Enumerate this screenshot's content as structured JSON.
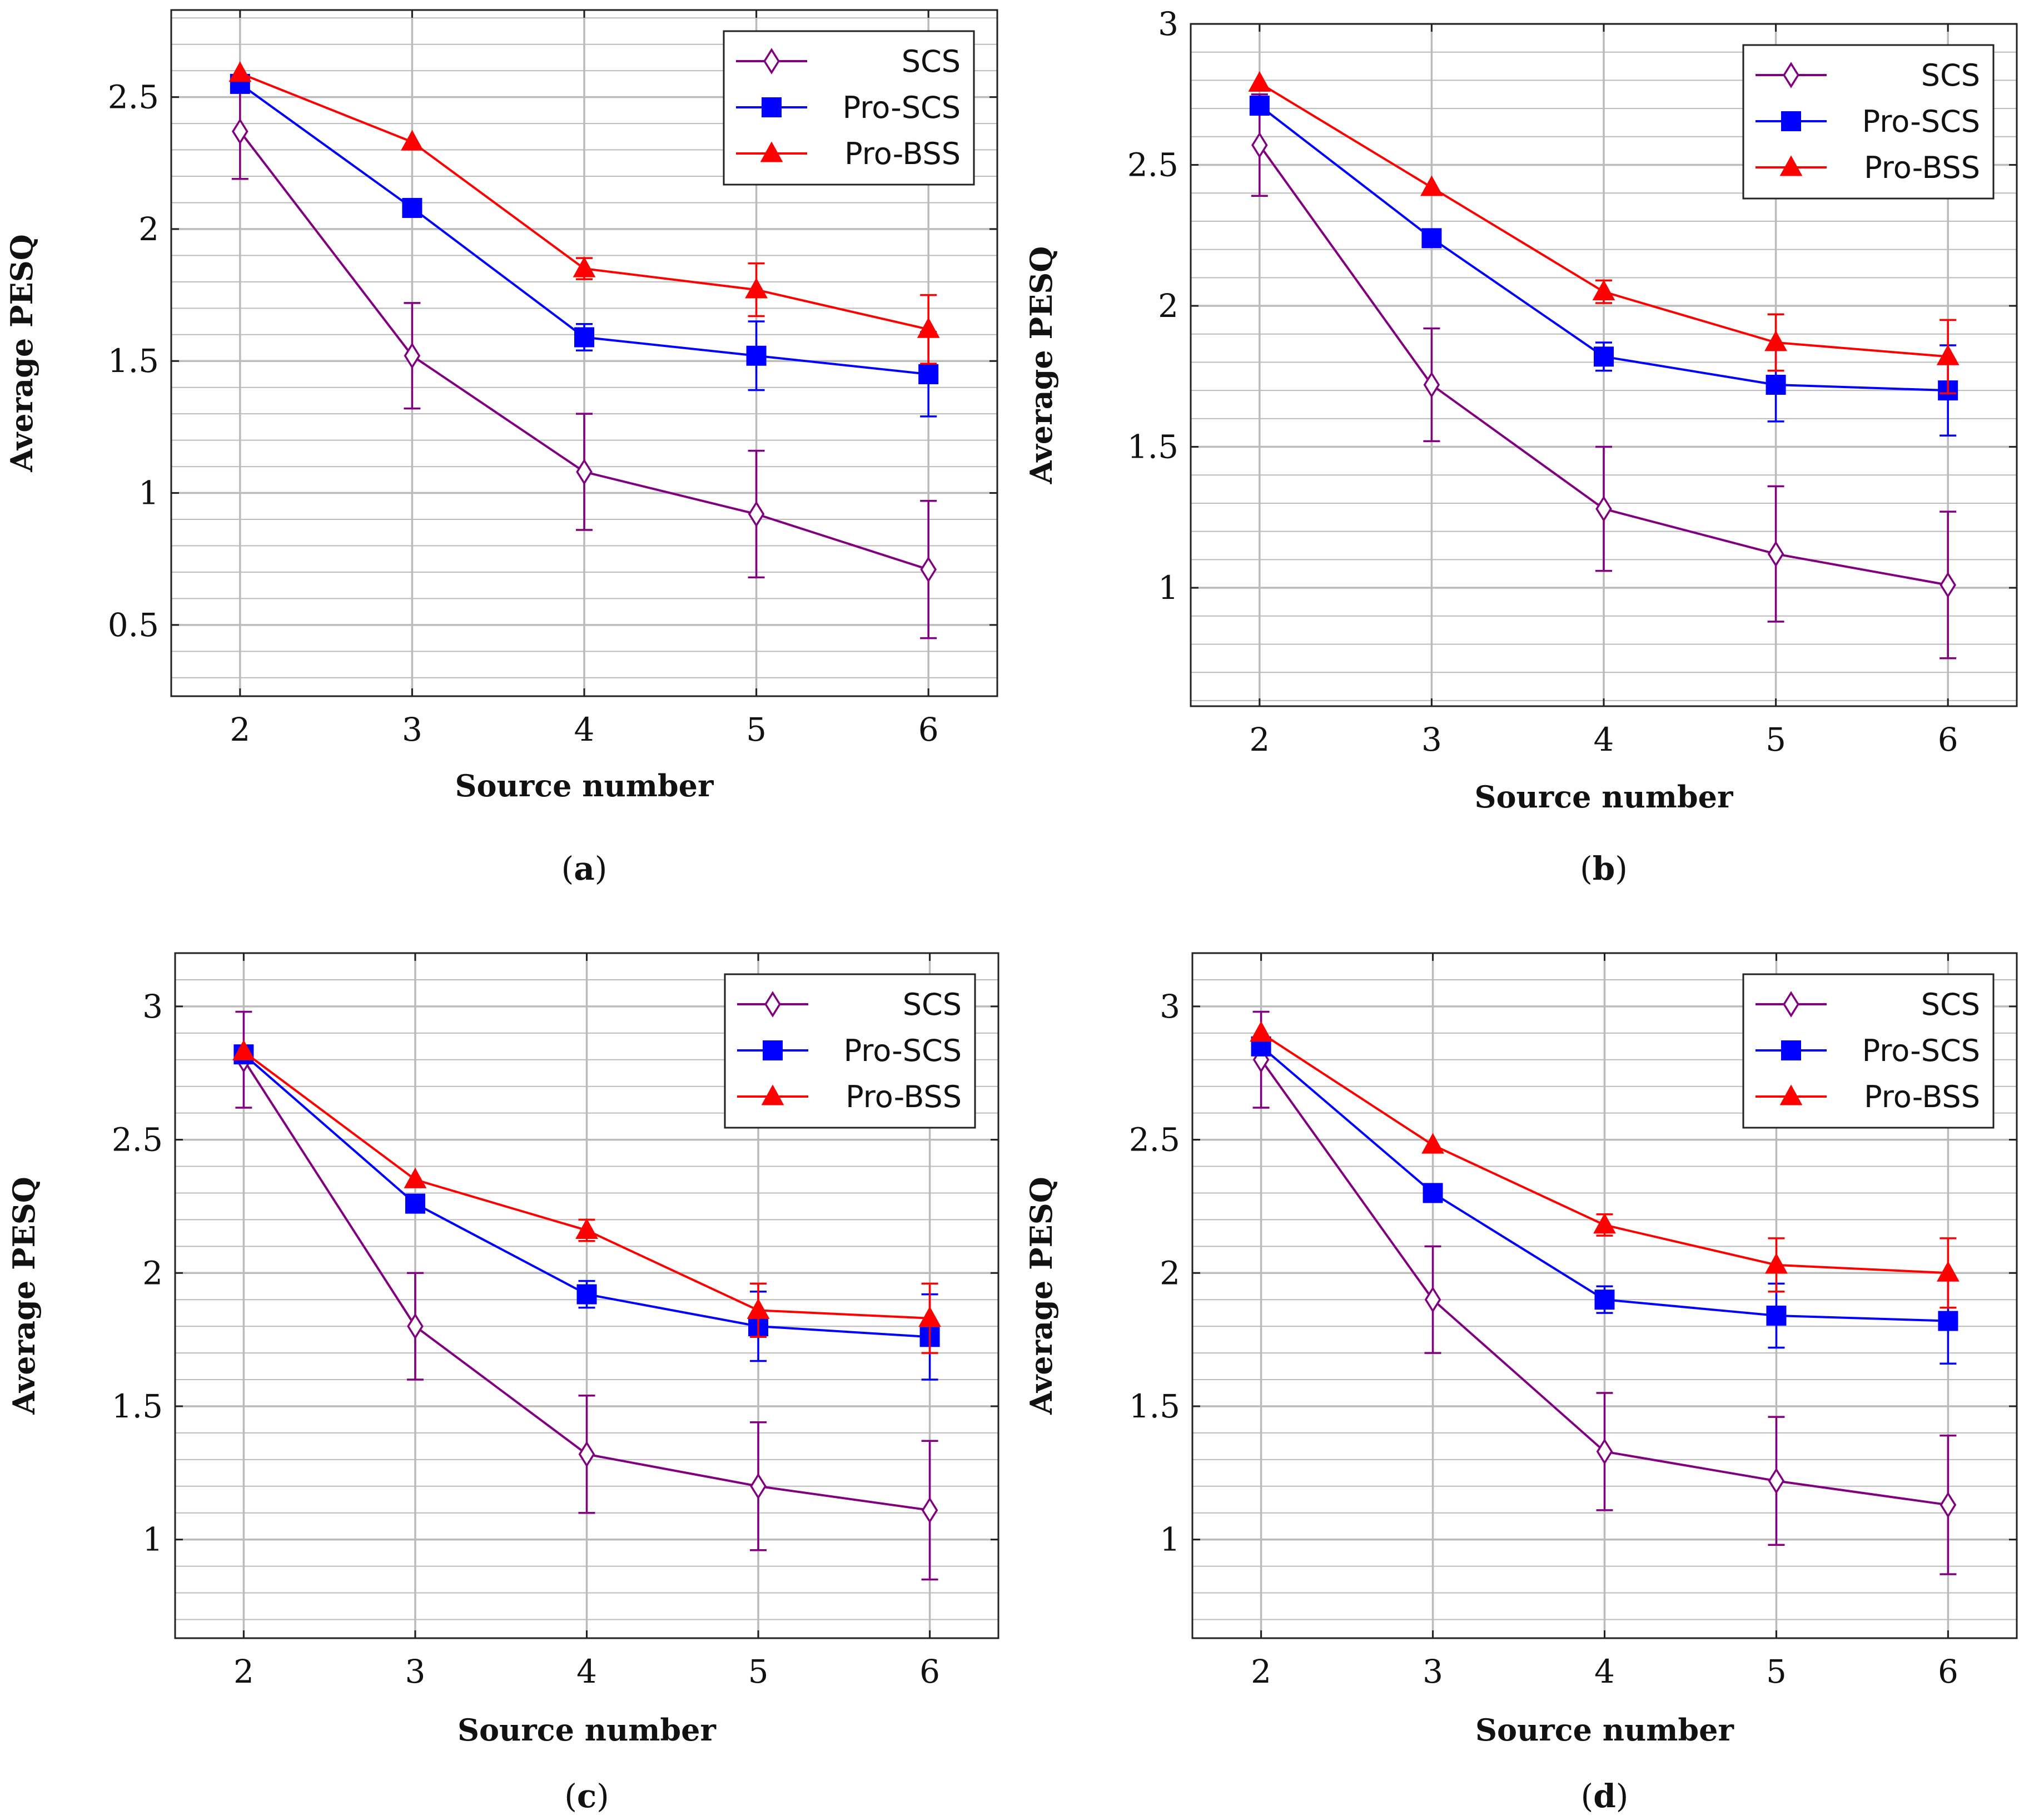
{
  "colors": {
    "SCS": "#800080",
    "Pro-SCS": "#0000ff",
    "Pro-BSS": "#ff0000",
    "grid": "#bbbbbb",
    "frame": "#222222"
  },
  "chart_data": [
    {
      "type": "line",
      "panel_label": "a",
      "xlabel": "Source number",
      "ylabel": "Average PESQ",
      "x": [
        2,
        3,
        4,
        5,
        6
      ],
      "xlim": [
        1.6,
        6.4
      ],
      "ylim": [
        0.23,
        2.83
      ],
      "yticks": [
        0.5,
        1,
        1.5,
        2,
        2.5
      ],
      "ytick_labels": [
        "0.5",
        "1",
        "1.5",
        "2",
        "2.5"
      ],
      "grid": true,
      "legend_position": "top-right",
      "series": [
        {
          "name": "SCS",
          "marker": "diamond",
          "values": [
            2.37,
            1.52,
            1.08,
            0.92,
            0.71
          ],
          "err": [
            0.18,
            0.2,
            0.22,
            0.24,
            0.26
          ]
        },
        {
          "name": "Pro-SCS",
          "marker": "square",
          "values": [
            2.55,
            2.08,
            1.59,
            1.52,
            1.45
          ],
          "err": [
            0,
            0,
            0.05,
            0.13,
            0.16
          ]
        },
        {
          "name": "Pro-BSS",
          "marker": "triangle",
          "values": [
            2.59,
            2.33,
            1.85,
            1.77,
            1.62
          ],
          "err": [
            0,
            0,
            0.04,
            0.1,
            0.13
          ]
        }
      ]
    },
    {
      "type": "line",
      "panel_label": "b",
      "xlabel": "Source number",
      "ylabel": "Average PESQ",
      "x": [
        2,
        3,
        4,
        5,
        6
      ],
      "xlim": [
        1.6,
        6.4
      ],
      "ylim": [
        0.58,
        3.0
      ],
      "yticks": [
        1,
        1.5,
        2,
        2.5,
        3
      ],
      "ytick_labels": [
        "1",
        "1.5",
        "2",
        "2.5",
        "3"
      ],
      "grid": true,
      "legend_position": "top-right",
      "series": [
        {
          "name": "SCS",
          "marker": "diamond",
          "values": [
            2.57,
            1.72,
            1.28,
            1.12,
            1.01
          ],
          "err": [
            0.18,
            0.2,
            0.22,
            0.24,
            0.26
          ]
        },
        {
          "name": "Pro-SCS",
          "marker": "square",
          "values": [
            2.71,
            2.24,
            1.82,
            1.72,
            1.7
          ],
          "err": [
            0,
            0,
            0.05,
            0.13,
            0.16
          ]
        },
        {
          "name": "Pro-BSS",
          "marker": "triangle",
          "values": [
            2.79,
            2.42,
            2.05,
            1.87,
            1.82
          ],
          "err": [
            0,
            0,
            0.04,
            0.1,
            0.13
          ]
        }
      ]
    },
    {
      "type": "line",
      "panel_label": "c",
      "xlabel": "Source number",
      "ylabel": "Average PESQ",
      "x": [
        2,
        3,
        4,
        5,
        6
      ],
      "xlim": [
        1.6,
        6.4
      ],
      "ylim": [
        0.63,
        3.2
      ],
      "yticks": [
        1,
        1.5,
        2,
        2.5,
        3
      ],
      "ytick_labels": [
        "1",
        "1.5",
        "2",
        "2.5",
        "3"
      ],
      "grid": true,
      "legend_position": "top-right",
      "series": [
        {
          "name": "SCS",
          "marker": "diamond",
          "values": [
            2.8,
            1.8,
            1.32,
            1.2,
            1.11
          ],
          "err": [
            0.18,
            0.2,
            0.22,
            0.24,
            0.26
          ]
        },
        {
          "name": "Pro-SCS",
          "marker": "square",
          "values": [
            2.82,
            2.26,
            1.92,
            1.8,
            1.76
          ],
          "err": [
            0,
            0,
            0.05,
            0.13,
            0.16
          ]
        },
        {
          "name": "Pro-BSS",
          "marker": "triangle",
          "values": [
            2.83,
            2.35,
            2.16,
            1.86,
            1.83
          ],
          "err": [
            0,
            0,
            0.04,
            0.1,
            0.13
          ]
        }
      ]
    },
    {
      "type": "line",
      "panel_label": "d",
      "xlabel": "Source number",
      "ylabel": "Average PESQ",
      "x": [
        2,
        3,
        4,
        5,
        6
      ],
      "xlim": [
        1.6,
        6.4
      ],
      "ylim": [
        0.63,
        3.2
      ],
      "yticks": [
        1,
        1.5,
        2,
        2.5,
        3
      ],
      "ytick_labels": [
        "1",
        "1.5",
        "2",
        "2.5",
        "3"
      ],
      "grid": true,
      "legend_position": "top-right",
      "series": [
        {
          "name": "SCS",
          "marker": "diamond",
          "values": [
            2.8,
            1.9,
            1.33,
            1.22,
            1.13
          ],
          "err": [
            0.18,
            0.2,
            0.22,
            0.24,
            0.26
          ]
        },
        {
          "name": "Pro-SCS",
          "marker": "square",
          "values": [
            2.85,
            2.3,
            1.9,
            1.84,
            1.82
          ],
          "err": [
            0,
            0,
            0.05,
            0.12,
            0.16
          ]
        },
        {
          "name": "Pro-BSS",
          "marker": "triangle",
          "values": [
            2.9,
            2.48,
            2.18,
            2.03,
            2.0
          ],
          "err": [
            0,
            0,
            0.04,
            0.1,
            0.13
          ]
        }
      ]
    }
  ]
}
